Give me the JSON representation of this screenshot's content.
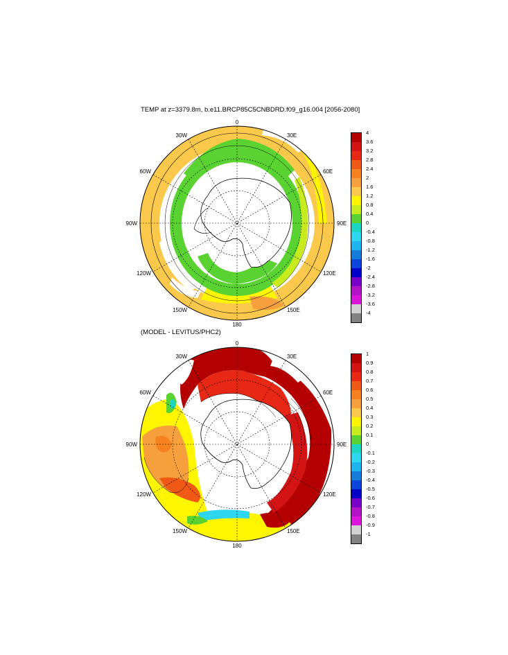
{
  "panels": [
    {
      "title": "TEMP at z=3379.8m, b.e11.BRCP85C5CNBDRD.f09_g16.004 [2056-2080]",
      "colorbar": {
        "labels": [
          "4",
          "3.6",
          "3.2",
          "2.8",
          "2.4",
          "2",
          "1.6",
          "1.2",
          "0.8",
          "0.4",
          "0",
          "-0.4",
          "-0.8",
          "-1.2",
          "-1.6",
          "-2",
          "-2.4",
          "-2.8",
          "-3.2",
          "-3.6",
          "-4"
        ],
        "colors": [
          "#b40000",
          "#d21414",
          "#e62814",
          "#f05a14",
          "#f5821e",
          "#f5a03c",
          "#fac84b",
          "#fff500",
          "#c8eb1e",
          "#5ad232",
          "#19d7c3",
          "#2dd7f0",
          "#1eb4f0",
          "#147ddc",
          "#0a46dc",
          "#0000c8",
          "#7800c8",
          "#b414c8",
          "#dc14dc",
          "#d2d2d2",
          "#828282"
        ]
      }
    },
    {
      "title": "(MODEL - LEVITUS/PHC2)",
      "colorbar": {
        "labels": [
          "1",
          "0.9",
          "0.8",
          "0.7",
          "0.6",
          "0.5",
          "0.4",
          "0.3",
          "0.2",
          "0.1",
          "0",
          "-0.1",
          "-0.2",
          "-0.3",
          "-0.4",
          "-0.5",
          "-0.6",
          "-0.7",
          "-0.8",
          "-0.9",
          "-1"
        ],
        "colors": [
          "#b40000",
          "#d21414",
          "#e62814",
          "#f05a14",
          "#f5821e",
          "#f5a03c",
          "#fac84b",
          "#fff500",
          "#c8eb1e",
          "#5ad232",
          "#19d7c3",
          "#2dd7f0",
          "#1eb4f0",
          "#147ddc",
          "#0a46dc",
          "#0000c8",
          "#7800c8",
          "#b414c8",
          "#dc14dc",
          "#d2d2d2",
          "#828282"
        ]
      }
    }
  ],
  "longitude_labels": [
    "0",
    "30E",
    "60E",
    "90E",
    "120E",
    "150E",
    "180",
    "150W",
    "120W",
    "90W",
    "60W",
    "30W"
  ]
}
